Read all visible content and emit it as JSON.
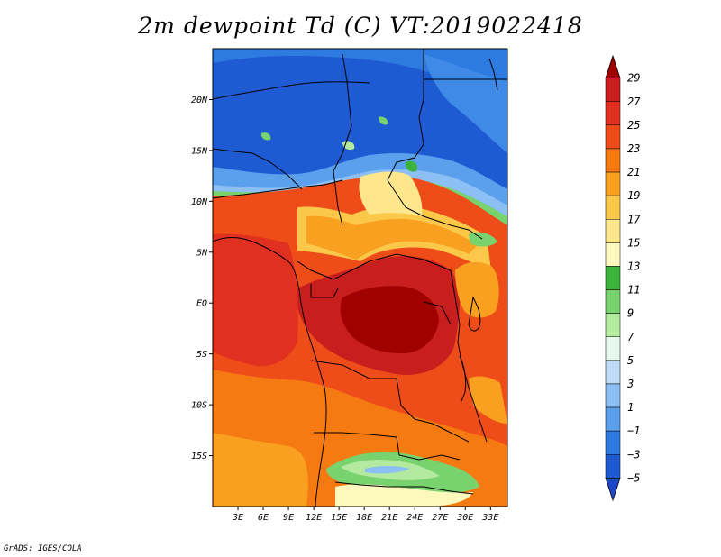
{
  "title": "2m dewpoint Td (C) VT:2019022418",
  "credit": "GrADS: IGES/COLA",
  "map": {
    "lon_range": [
      0,
      35
    ],
    "lat_range": [
      -20,
      25
    ],
    "lat_ticks": [
      {
        "value": 20,
        "label": "20N"
      },
      {
        "value": 15,
        "label": "15N"
      },
      {
        "value": 10,
        "label": "10N"
      },
      {
        "value": 5,
        "label": "5N"
      },
      {
        "value": 0,
        "label": "EQ"
      },
      {
        "value": -5,
        "label": "5S"
      },
      {
        "value": -10,
        "label": "10S"
      },
      {
        "value": -15,
        "label": "15S"
      }
    ],
    "lon_ticks": [
      {
        "value": 3,
        "label": "3E"
      },
      {
        "value": 6,
        "label": "6E"
      },
      {
        "value": 9,
        "label": "9E"
      },
      {
        "value": 12,
        "label": "12E"
      },
      {
        "value": 15,
        "label": "15E"
      },
      {
        "value": 18,
        "label": "18E"
      },
      {
        "value": 21,
        "label": "21E"
      },
      {
        "value": 24,
        "label": "24E"
      },
      {
        "value": 27,
        "label": "27E"
      },
      {
        "value": 30,
        "label": "30E"
      },
      {
        "value": 33,
        "label": "33E"
      }
    ]
  },
  "colorbar": {
    "levels": [
      "29",
      "27",
      "25",
      "23",
      "21",
      "19",
      "17",
      "15",
      "13",
      "11",
      "9",
      "7",
      "5",
      "3",
      "1",
      "−1",
      "−3",
      "−5"
    ],
    "colors": [
      "#a00000",
      "#c81e1e",
      "#e03020",
      "#ee4c18",
      "#f57a12",
      "#f9a020",
      "#fbc84a",
      "#fde68c",
      "#fdf8bc",
      "#3cb43c",
      "#78d26e",
      "#b4eaa0",
      "#e6f8f0",
      "#bedcf8",
      "#8cc0f4",
      "#5aa0ec",
      "#2d7ae0",
      "#1e5ad2",
      "#1e46c8"
    ]
  }
}
